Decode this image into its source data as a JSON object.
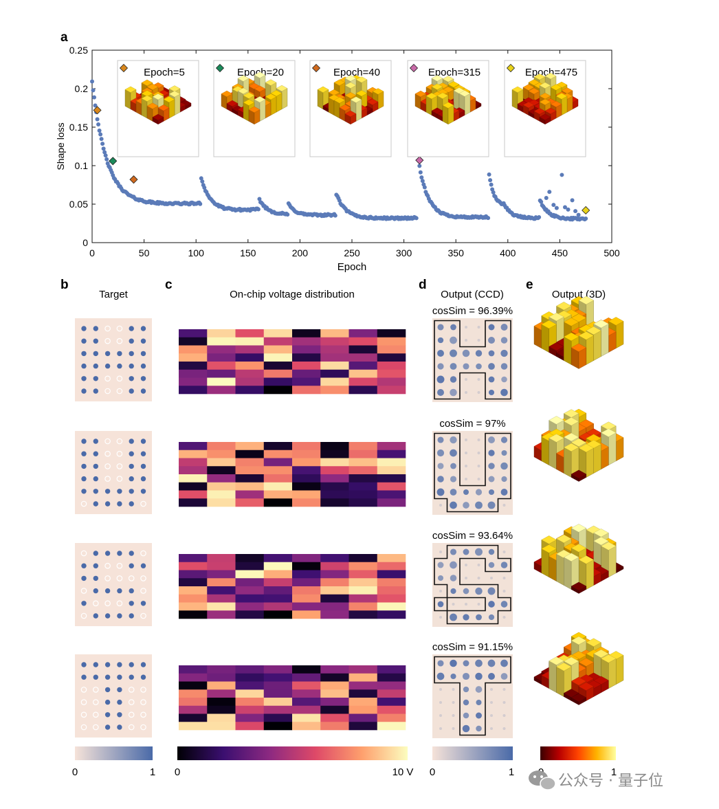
{
  "panel_labels": {
    "a": "a",
    "b": "b",
    "c": "c",
    "d": "d",
    "e": "e"
  },
  "headers": {
    "target": "Target",
    "voltage": "On-chip voltage distribution",
    "ccd": "Output (CCD)",
    "out3d": "Output (3D)"
  },
  "colorbars": {
    "target": {
      "min": "0",
      "max": "1",
      "colors": [
        "#f6e3d9",
        "#4a6aa8"
      ]
    },
    "voltage": {
      "min": "0",
      "max": "10 V",
      "colors": [
        "#000004",
        "#3b0f70",
        "#8c2981",
        "#de4968",
        "#fe9f6d",
        "#fcfdbf"
      ]
    },
    "ccd": {
      "min": "0",
      "max": "1",
      "colors": [
        "#f6e3d9",
        "#4a6aa8"
      ]
    },
    "out3d": {
      "min": "0",
      "max": "1",
      "colors": [
        "#3a0000",
        "#b80000",
        "#ff4400",
        "#ffb400",
        "#ffffa0"
      ]
    }
  },
  "watermark": {
    "text": "公众号 · 量子位"
  },
  "chart_data": {
    "type": "scatter",
    "xlabel": "Epoch",
    "ylabel": "Shape loss",
    "xlim": [
      0,
      500
    ],
    "ylim": [
      0,
      0.25
    ],
    "xticks": [
      0,
      50,
      100,
      150,
      200,
      250,
      300,
      350,
      400,
      450,
      500
    ],
    "yticks": [
      0,
      0.05,
      0.1,
      0.15,
      0.2,
      0.25
    ],
    "series_color": "#5b7bb8",
    "restarts": [
      {
        "start": 0,
        "end": 104,
        "y0": 0.21,
        "y1": 0.051,
        "tau": 14,
        "floor": 0.048
      },
      {
        "start": 105,
        "end": 160,
        "y0": 0.084,
        "y1": 0.043,
        "tau": 9,
        "floor": 0.04
      },
      {
        "start": 161,
        "end": 188,
        "y0": 0.056,
        "y1": 0.037,
        "tau": 8,
        "floor": 0.036
      },
      {
        "start": 189,
        "end": 234,
        "y0": 0.05,
        "y1": 0.036,
        "tau": 7,
        "floor": 0.035
      },
      {
        "start": 235,
        "end": 312,
        "y0": 0.063,
        "y1": 0.032,
        "tau": 9,
        "floor": 0.031
      },
      {
        "start": 314,
        "end": 381,
        "y0": 0.107,
        "y1": 0.033,
        "tau": 9,
        "floor": 0.032
      },
      {
        "start": 382,
        "end": 395,
        "y0": 0.088,
        "y1": 0.05,
        "tau": 5,
        "floor": 0.045
      },
      {
        "start": 396,
        "end": 430,
        "y0": 0.052,
        "y1": 0.032,
        "tau": 7,
        "floor": 0.031
      },
      {
        "start": 431,
        "end": 475,
        "y0": 0.055,
        "y1": 0.031,
        "tau": 8,
        "floor": 0.03
      }
    ],
    "outliers": [
      [
        437,
        0.058
      ],
      [
        440,
        0.066
      ],
      [
        444,
        0.049
      ],
      [
        447,
        0.045
      ],
      [
        452,
        0.088
      ],
      [
        455,
        0.046
      ],
      [
        458,
        0.043
      ],
      [
        462,
        0.055
      ],
      [
        465,
        0.041
      ],
      [
        468,
        0.036
      ]
    ],
    "markers": [
      {
        "epoch": 5,
        "loss": 0.172,
        "color": "#d8871c",
        "label": "Epoch=5"
      },
      {
        "epoch": 20,
        "loss": 0.106,
        "color": "#1b8a5a",
        "label": "Epoch=20"
      },
      {
        "epoch": 40,
        "loss": 0.082,
        "color": "#d06a1e",
        "label": "Epoch=40"
      },
      {
        "epoch": 315,
        "loss": 0.107,
        "color": "#c86aa8",
        "label": "Epoch=315"
      },
      {
        "epoch": 475,
        "loss": 0.042,
        "color": "#e8d21a",
        "label": "Epoch=475"
      }
    ]
  },
  "rows": [
    {
      "target": [
        [
          1,
          1,
          0,
          0,
          1,
          1
        ],
        [
          1,
          1,
          0,
          0,
          1,
          1
        ],
        [
          1,
          1,
          1,
          1,
          1,
          1
        ],
        [
          1,
          1,
          1,
          1,
          1,
          1
        ],
        [
          1,
          1,
          0,
          0,
          1,
          1
        ],
        [
          1,
          1,
          0,
          0,
          1,
          1
        ]
      ],
      "cos_sim": "cosSim = 96.39%"
    },
    {
      "target": [
        [
          1,
          1,
          0,
          0,
          1,
          1
        ],
        [
          1,
          1,
          0,
          0,
          1,
          1
        ],
        [
          1,
          1,
          0,
          0,
          1,
          1
        ],
        [
          1,
          1,
          0,
          0,
          1,
          1
        ],
        [
          1,
          1,
          1,
          1,
          1,
          1
        ],
        [
          0,
          1,
          1,
          1,
          1,
          0
        ]
      ],
      "cos_sim": "cosSim = 97%"
    },
    {
      "target": [
        [
          0,
          1,
          1,
          1,
          1,
          0
        ],
        [
          1,
          1,
          0,
          0,
          1,
          1
        ],
        [
          1,
          1,
          0,
          0,
          0,
          0
        ],
        [
          0,
          1,
          1,
          1,
          1,
          0
        ],
        [
          1,
          0,
          0,
          0,
          1,
          1
        ],
        [
          0,
          1,
          1,
          1,
          1,
          0
        ]
      ],
      "cos_sim": "cosSim = 93.64%"
    },
    {
      "target": [
        [
          1,
          1,
          1,
          1,
          1,
          1
        ],
        [
          1,
          1,
          1,
          1,
          1,
          1
        ],
        [
          0,
          0,
          1,
          1,
          0,
          0
        ],
        [
          0,
          0,
          1,
          1,
          0,
          0
        ],
        [
          0,
          0,
          1,
          1,
          0,
          0
        ],
        [
          0,
          0,
          1,
          1,
          0,
          0
        ]
      ],
      "cos_sim": "cosSim = 91.15%"
    }
  ]
}
